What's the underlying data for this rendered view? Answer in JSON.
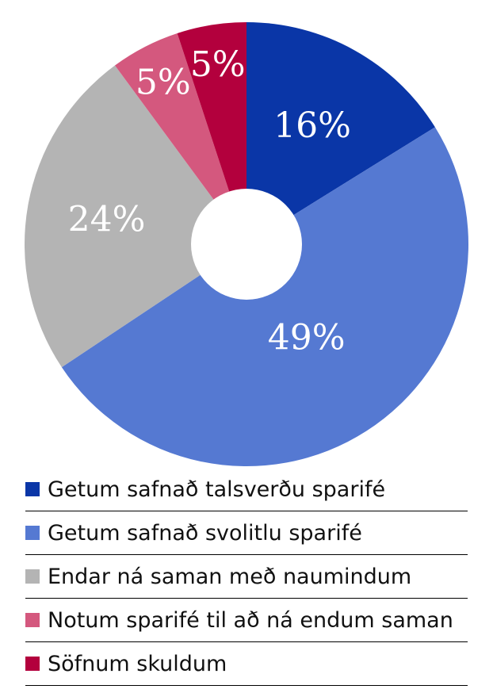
{
  "chart_data": {
    "type": "pie",
    "donut": true,
    "title": "",
    "legend_position": "bottom",
    "slices": [
      {
        "label": "Getum safnað talsverðu sparifé",
        "value": 16,
        "display": "16%",
        "color": "#0A36A7"
      },
      {
        "label": "Getum safnað svolitlu sparifé",
        "value": 49,
        "display": "49%",
        "color": "#5579D2"
      },
      {
        "label": "Endar ná saman með naumindum",
        "value": 24,
        "display": "24%",
        "color": "#B4B4B4"
      },
      {
        "label": "Notum sparifé til að ná endum saman",
        "value": 5,
        "display": "5%",
        "color": "#D4587E"
      },
      {
        "label": "Söfnum skuldum",
        "value": 5,
        "display": "5%",
        "color": "#B3003D"
      }
    ]
  }
}
